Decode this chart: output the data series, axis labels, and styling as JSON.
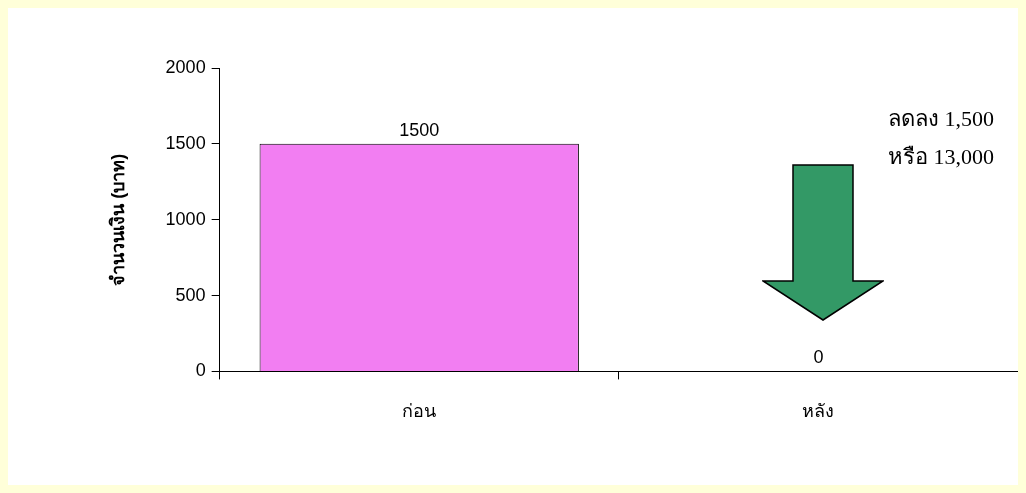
{
  "chart_data": {
    "type": "bar",
    "ylabel": "จำนวนเงิน (บาท)",
    "categories": [
      "ก่อน",
      "หลัง"
    ],
    "values": [
      1500,
      0
    ],
    "color": "#f27ef2",
    "ylim": [
      0,
      2000
    ],
    "yticks": [
      0,
      500,
      1000,
      1500,
      2000
    ],
    "grid": false,
    "legend": false,
    "data_labels": true,
    "annotations": [
      "ลดลง 1,500",
      "หรือ 13,000"
    ]
  }
}
